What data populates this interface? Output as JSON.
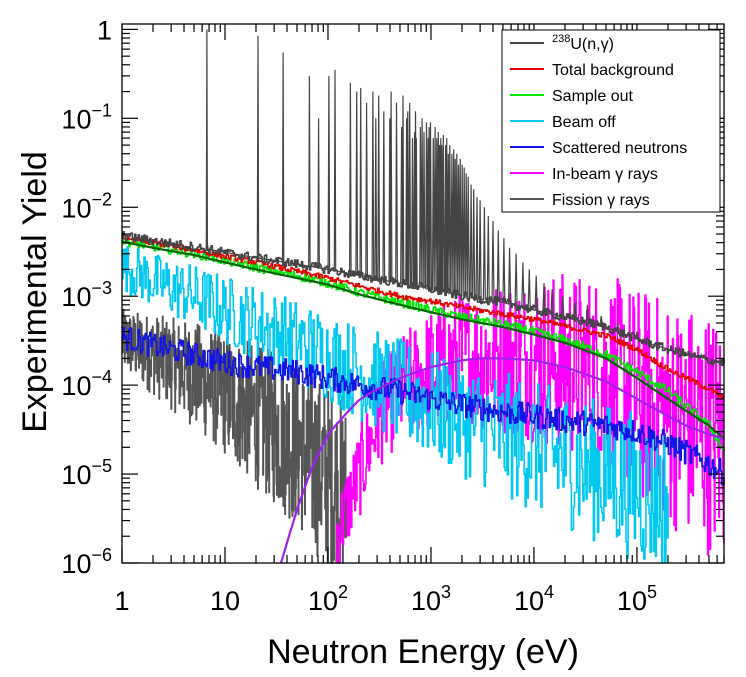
{
  "chart_data": {
    "type": "line",
    "xscale": "log",
    "yscale": "log",
    "xlabel": "Neutron Energy (eV)",
    "ylabel": "Experimental Yield",
    "xlim": [
      1,
      700000
    ],
    "ylim": [
      1e-06,
      1.15
    ],
    "grid": false,
    "legend_position": "top-right",
    "x_ticks": [
      {
        "value": 1,
        "label": "1"
      },
      {
        "value": 10,
        "label": "10"
      },
      {
        "value": 100,
        "base": "10",
        "exp": "2"
      },
      {
        "value": 1000,
        "base": "10",
        "exp": "3"
      },
      {
        "value": 10000,
        "base": "10",
        "exp": "4"
      },
      {
        "value": 100000,
        "base": "10",
        "exp": "5"
      }
    ],
    "y_ticks": [
      {
        "value": 1,
        "label": "1"
      },
      {
        "value": 0.1,
        "base": "10",
        "exp": "−1"
      },
      {
        "value": 0.01,
        "base": "10",
        "exp": "−2"
      },
      {
        "value": 0.001,
        "base": "10",
        "exp": "−3"
      },
      {
        "value": 0.0001,
        "base": "10",
        "exp": "−4"
      },
      {
        "value": 1e-05,
        "base": "10",
        "exp": "−5"
      },
      {
        "value": 1e-06,
        "base": "10",
        "exp": "−6"
      }
    ],
    "series": [
      {
        "name": "Fission γ rays",
        "color": "#555555",
        "x": [
          1,
          2,
          5,
          10,
          20,
          50,
          100,
          150
        ],
        "y": [
          0.00032,
          0.00022,
          0.00013,
          8e-05,
          4.5e-05,
          2.2e-05,
          9e-06,
          5e-06
        ]
      },
      {
        "name": "In-beam γ rays",
        "color": "#ff00ff",
        "x": [
          120,
          200,
          300,
          500,
          1000,
          2000,
          5000,
          10000,
          20000,
          50000,
          100000,
          200000,
          500000,
          700000
        ],
        "y": [
          2e-06,
          1e-05,
          4e-05,
          9e-05,
          0.00015,
          0.0002,
          0.00021,
          0.0002,
          0.00018,
          0.00013,
          8e-05,
          5e-05,
          3e-05,
          2.5e-05
        ]
      },
      {
        "name": "Beam off",
        "color": "#00c8f0",
        "x": [
          1,
          2,
          5,
          10,
          20,
          50,
          100,
          200,
          500,
          1000,
          2000,
          5000,
          10000,
          20000,
          50000,
          100000,
          200000
        ],
        "y": [
          0.0022,
          0.0015,
          0.001,
          0.0007,
          0.0005,
          0.00031,
          0.00021,
          0.00014,
          8.5e-05,
          6e-05,
          4.2e-05,
          2.8e-05,
          2e-05,
          1.5e-05,
          1e-05,
          7e-06,
          5e-06
        ]
      },
      {
        "name": "Scattered neutrons",
        "color": "#1414e6",
        "x": [
          1,
          2,
          5,
          10,
          20,
          50,
          100,
          200,
          500,
          1000,
          2000,
          5000,
          10000,
          20000,
          50000,
          100000,
          200000,
          500000,
          700000
        ],
        "y": [
          0.00035,
          0.00028,
          0.00022,
          0.00018,
          0.00016,
          0.00014,
          0.00012,
          0.0001,
          8.5e-05,
          7e-05,
          6e-05,
          5e-05,
          4.5e-05,
          4e-05,
          3.5e-05,
          3e-05,
          2.2e-05,
          1.3e-05,
          1e-05
        ]
      },
      {
        "name": "Sample out",
        "color": "#00e600",
        "x": [
          1,
          2,
          5,
          10,
          20,
          50,
          100,
          200,
          500,
          1000,
          2000,
          5000,
          10000,
          20000,
          50000,
          100000,
          200000,
          500000,
          700000
        ],
        "y": [
          0.0042,
          0.0036,
          0.003,
          0.0025,
          0.0021,
          0.0017,
          0.0014,
          0.0011,
          0.00085,
          0.0007,
          0.00058,
          0.00048,
          0.0004,
          0.00032,
          0.00022,
          0.00014,
          8.5e-05,
          3.5e-05,
          1.8e-05
        ]
      },
      {
        "name": "Total background",
        "color": "#e60000",
        "x": [
          1,
          2,
          5,
          10,
          20,
          50,
          100,
          200,
          500,
          1000,
          2000,
          5000,
          10000,
          20000,
          50000,
          100000,
          200000,
          500000,
          700000
        ],
        "y": [
          0.0046,
          0.004,
          0.0033,
          0.0028,
          0.0024,
          0.0019,
          0.0016,
          0.0013,
          0.001,
          0.00088,
          0.00075,
          0.00063,
          0.00055,
          0.00046,
          0.00036,
          0.00025,
          0.00015,
          9e-05,
          7e-05
        ]
      },
      {
        "name": "Dark green fit",
        "color": "#006400",
        "x": [
          1,
          2,
          5,
          10,
          20,
          50,
          100,
          200,
          500,
          1000,
          2000,
          5000,
          10000,
          20000,
          50000,
          100000,
          200000,
          500000,
          700000
        ],
        "y": [
          0.0041,
          0.0035,
          0.0029,
          0.0024,
          0.002,
          0.0016,
          0.00135,
          0.00105,
          0.0008,
          0.00066,
          0.00055,
          0.00045,
          0.00037,
          0.0003,
          0.0002,
          0.00012,
          7e-05,
          3.5e-05,
          2.5e-05
        ]
      },
      {
        "name": "Purple fit",
        "color": "#a020f0",
        "x": [
          35,
          50,
          70,
          100,
          150,
          200,
          300,
          500,
          1000,
          2000,
          3000,
          5000,
          10000,
          20000,
          50000,
          100000,
          200000,
          300000,
          500000,
          700000
        ],
        "y": [
          1e-06,
          4e-06,
          1.2e-05,
          2.8e-05,
          4.8e-05,
          6.8e-05,
          9e-05,
          0.00012,
          0.00016,
          0.00019,
          0.0002,
          0.0002,
          0.00019,
          0.00016,
          0.00011,
          7e-05,
          4.5e-05,
          3.5e-05,
          2.8e-05,
          2.5e-05
        ]
      },
      {
        "name": "238U(n,γ)",
        "color": "#444444",
        "x": [
          1,
          2,
          5,
          10,
          20,
          50,
          100,
          200,
          500,
          1000,
          2000,
          5000,
          10000,
          20000,
          50000,
          100000,
          200000,
          500000,
          700000
        ],
        "y": [
          0.0048,
          0.0042,
          0.0036,
          0.0031,
          0.0027,
          0.0023,
          0.002,
          0.0017,
          0.0014,
          0.0012,
          0.001,
          0.00085,
          0.0007,
          0.00058,
          0.00045,
          0.00033,
          0.00025,
          0.00019,
          0.00018
        ],
        "resonances": [
          {
            "x": 6.67,
            "y": 1.0
          },
          {
            "x": 20.9,
            "y": 0.85
          },
          {
            "x": 36.7,
            "y": 0.55
          },
          {
            "x": 66,
            "y": 0.3
          },
          {
            "x": 81,
            "y": 0.1
          },
          {
            "x": 102,
            "y": 0.3
          },
          {
            "x": 117,
            "y": 0.35
          },
          {
            "x": 165,
            "y": 0.25
          },
          {
            "x": 190,
            "y": 0.2
          },
          {
            "x": 208,
            "y": 0.22
          },
          {
            "x": 237,
            "y": 0.15
          },
          {
            "x": 273,
            "y": 0.2
          },
          {
            "x": 291,
            "y": 0.1
          },
          {
            "x": 311,
            "y": 0.18
          },
          {
            "x": 348,
            "y": 0.12
          },
          {
            "x": 398,
            "y": 0.1
          },
          {
            "x": 410,
            "y": 0.2
          },
          {
            "x": 463,
            "y": 0.15
          },
          {
            "x": 518,
            "y": 0.08
          },
          {
            "x": 535,
            "y": 0.18
          },
          {
            "x": 580,
            "y": 0.1
          },
          {
            "x": 595,
            "y": 0.12
          },
          {
            "x": 622,
            "y": 0.15
          },
          {
            "x": 662,
            "y": 0.06
          },
          {
            "x": 693,
            "y": 0.07
          },
          {
            "x": 708,
            "y": 0.12
          },
          {
            "x": 721,
            "y": 0.06
          },
          {
            "x": 790,
            "y": 0.08
          },
          {
            "x": 820,
            "y": 0.1
          },
          {
            "x": 856,
            "y": 0.07
          },
          {
            "x": 905,
            "y": 0.09
          },
          {
            "x": 937,
            "y": 0.06
          },
          {
            "x": 958,
            "y": 0.08
          },
          {
            "x": 990,
            "y": 0.09
          },
          {
            "x": 1054,
            "y": 0.06
          },
          {
            "x": 1097,
            "y": 0.08
          },
          {
            "x": 1140,
            "y": 0.06
          },
          {
            "x": 1178,
            "y": 0.07
          },
          {
            "x": 1211,
            "y": 0.05
          },
          {
            "x": 1245,
            "y": 0.06
          },
          {
            "x": 1275,
            "y": 0.05
          },
          {
            "x": 1317,
            "y": 0.065
          },
          {
            "x": 1388,
            "y": 0.05
          },
          {
            "x": 1420,
            "y": 0.06
          },
          {
            "x": 1473,
            "y": 0.04
          },
          {
            "x": 1522,
            "y": 0.05
          },
          {
            "x": 1598,
            "y": 0.04
          },
          {
            "x": 1663,
            "y": 0.045
          },
          {
            "x": 1720,
            "y": 0.035
          },
          {
            "x": 1780,
            "y": 0.04
          },
          {
            "x": 1850,
            "y": 0.03
          },
          {
            "x": 1920,
            "y": 0.035
          },
          {
            "x": 2010,
            "y": 0.03
          },
          {
            "x": 2100,
            "y": 0.028
          },
          {
            "x": 2200,
            "y": 0.024
          },
          {
            "x": 2300,
            "y": 0.022
          },
          {
            "x": 2450,
            "y": 0.018
          },
          {
            "x": 2600,
            "y": 0.016
          },
          {
            "x": 2800,
            "y": 0.013
          },
          {
            "x": 3000,
            "y": 0.012
          },
          {
            "x": 3300,
            "y": 0.01
          },
          {
            "x": 3600,
            "y": 0.008
          },
          {
            "x": 4000,
            "y": 0.007
          },
          {
            "x": 4500,
            "y": 0.0055
          },
          {
            "x": 5100,
            "y": 0.0045
          },
          {
            "x": 5800,
            "y": 0.0035
          },
          {
            "x": 6700,
            "y": 0.003
          },
          {
            "x": 7800,
            "y": 0.0024
          },
          {
            "x": 9000,
            "y": 0.002
          },
          {
            "x": 10500,
            "y": 0.0017
          },
          {
            "x": 12500,
            "y": 0.0014
          },
          {
            "x": 15000,
            "y": 0.0012
          },
          {
            "x": 19000,
            "y": 0.001
          },
          {
            "x": 25000,
            "y": 0.00085
          },
          {
            "x": 33000,
            "y": 0.0008
          },
          {
            "x": 45000,
            "y": 0.0006
          },
          {
            "x": 65000,
            "y": 0.0005
          },
          {
            "x": 100000,
            "y": 0.0004
          },
          {
            "x": 160000,
            "y": 0.0003
          },
          {
            "x": 260000,
            "y": 0.00026
          },
          {
            "x": 420000,
            "y": 0.00022
          }
        ]
      }
    ],
    "legend": [
      {
        "label_prefix": "",
        "label_sup": "238",
        "label_main": "U(n,γ)",
        "color": "#444444"
      },
      {
        "label_prefix": "",
        "label_sup": "",
        "label_main": "Total background",
        "color": "#e60000"
      },
      {
        "label_prefix": "",
        "label_sup": "",
        "label_main": "Sample out",
        "color": "#00e600"
      },
      {
        "label_prefix": "",
        "label_sup": "",
        "label_main": "Beam off",
        "color": "#00c8f0"
      },
      {
        "label_prefix": "",
        "label_sup": "",
        "label_main": "Scattered neutrons",
        "color": "#1414e6"
      },
      {
        "label_prefix": "",
        "label_sup": "",
        "label_main": "In-beam γ rays",
        "color": "#ff00ff"
      },
      {
        "label_prefix": "",
        "label_sup": "",
        "label_main": "Fission γ rays",
        "color": "#555555"
      }
    ]
  }
}
